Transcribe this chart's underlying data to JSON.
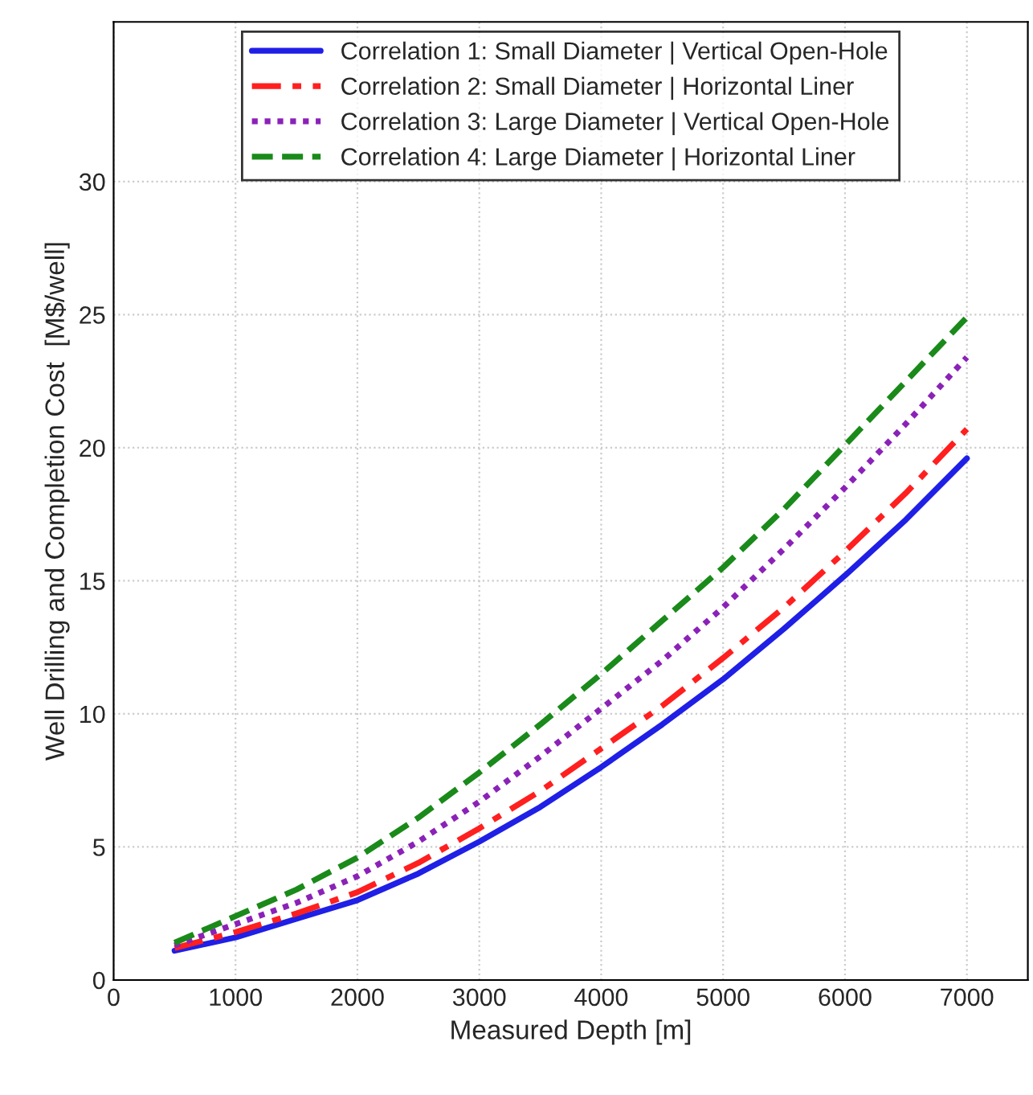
{
  "chart_data": {
    "type": "line",
    "xlabel": "Measured Depth [m]",
    "ylabel": "Well Drilling and Completion Cost  [M$/well]",
    "xlim": [
      0,
      7500
    ],
    "ylim": [
      0,
      36
    ],
    "xticks": [
      0,
      1000,
      2000,
      3000,
      4000,
      5000,
      6000,
      7000
    ],
    "yticks": [
      0,
      5,
      10,
      15,
      20,
      25,
      30
    ],
    "grid": true,
    "legend": "top",
    "x": [
      500,
      1000,
      1500,
      2000,
      2500,
      3000,
      3500,
      4000,
      4500,
      5000,
      5500,
      6000,
      6500,
      7000
    ],
    "series": [
      {
        "name": "Correlation 1: Small Diameter | Vertical Open-Hole",
        "color": "#1f1fe6",
        "line_style": "solid",
        "values": [
          1.1,
          1.6,
          2.3,
          3.0,
          4.0,
          5.2,
          6.5,
          8.0,
          9.6,
          11.3,
          13.2,
          15.2,
          17.3,
          19.6
        ]
      },
      {
        "name": "Correlation 2: Small Diameter | Horizontal Liner",
        "color": "#ff1f1f",
        "line_style": "dashdot",
        "values": [
          1.2,
          1.8,
          2.5,
          3.3,
          4.4,
          5.7,
          7.1,
          8.7,
          10.3,
          12.1,
          14.0,
          16.1,
          18.3,
          20.7
        ]
      },
      {
        "name": "Correlation 3: Large Diameter | Vertical Open-Hole",
        "color": "#8b22b8",
        "line_style": "dotted",
        "values": [
          1.3,
          2.1,
          2.9,
          3.9,
          5.2,
          6.7,
          8.4,
          10.2,
          12.0,
          14.0,
          16.2,
          18.5,
          20.9,
          23.4
        ]
      },
      {
        "name": "Correlation 4: Large Diameter | Horizontal Liner",
        "color": "#1a8a1a",
        "line_style": "dashed",
        "values": [
          1.4,
          2.4,
          3.4,
          4.6,
          6.1,
          7.8,
          9.6,
          11.5,
          13.5,
          15.5,
          17.7,
          20.1,
          22.5,
          24.9
        ]
      }
    ]
  }
}
